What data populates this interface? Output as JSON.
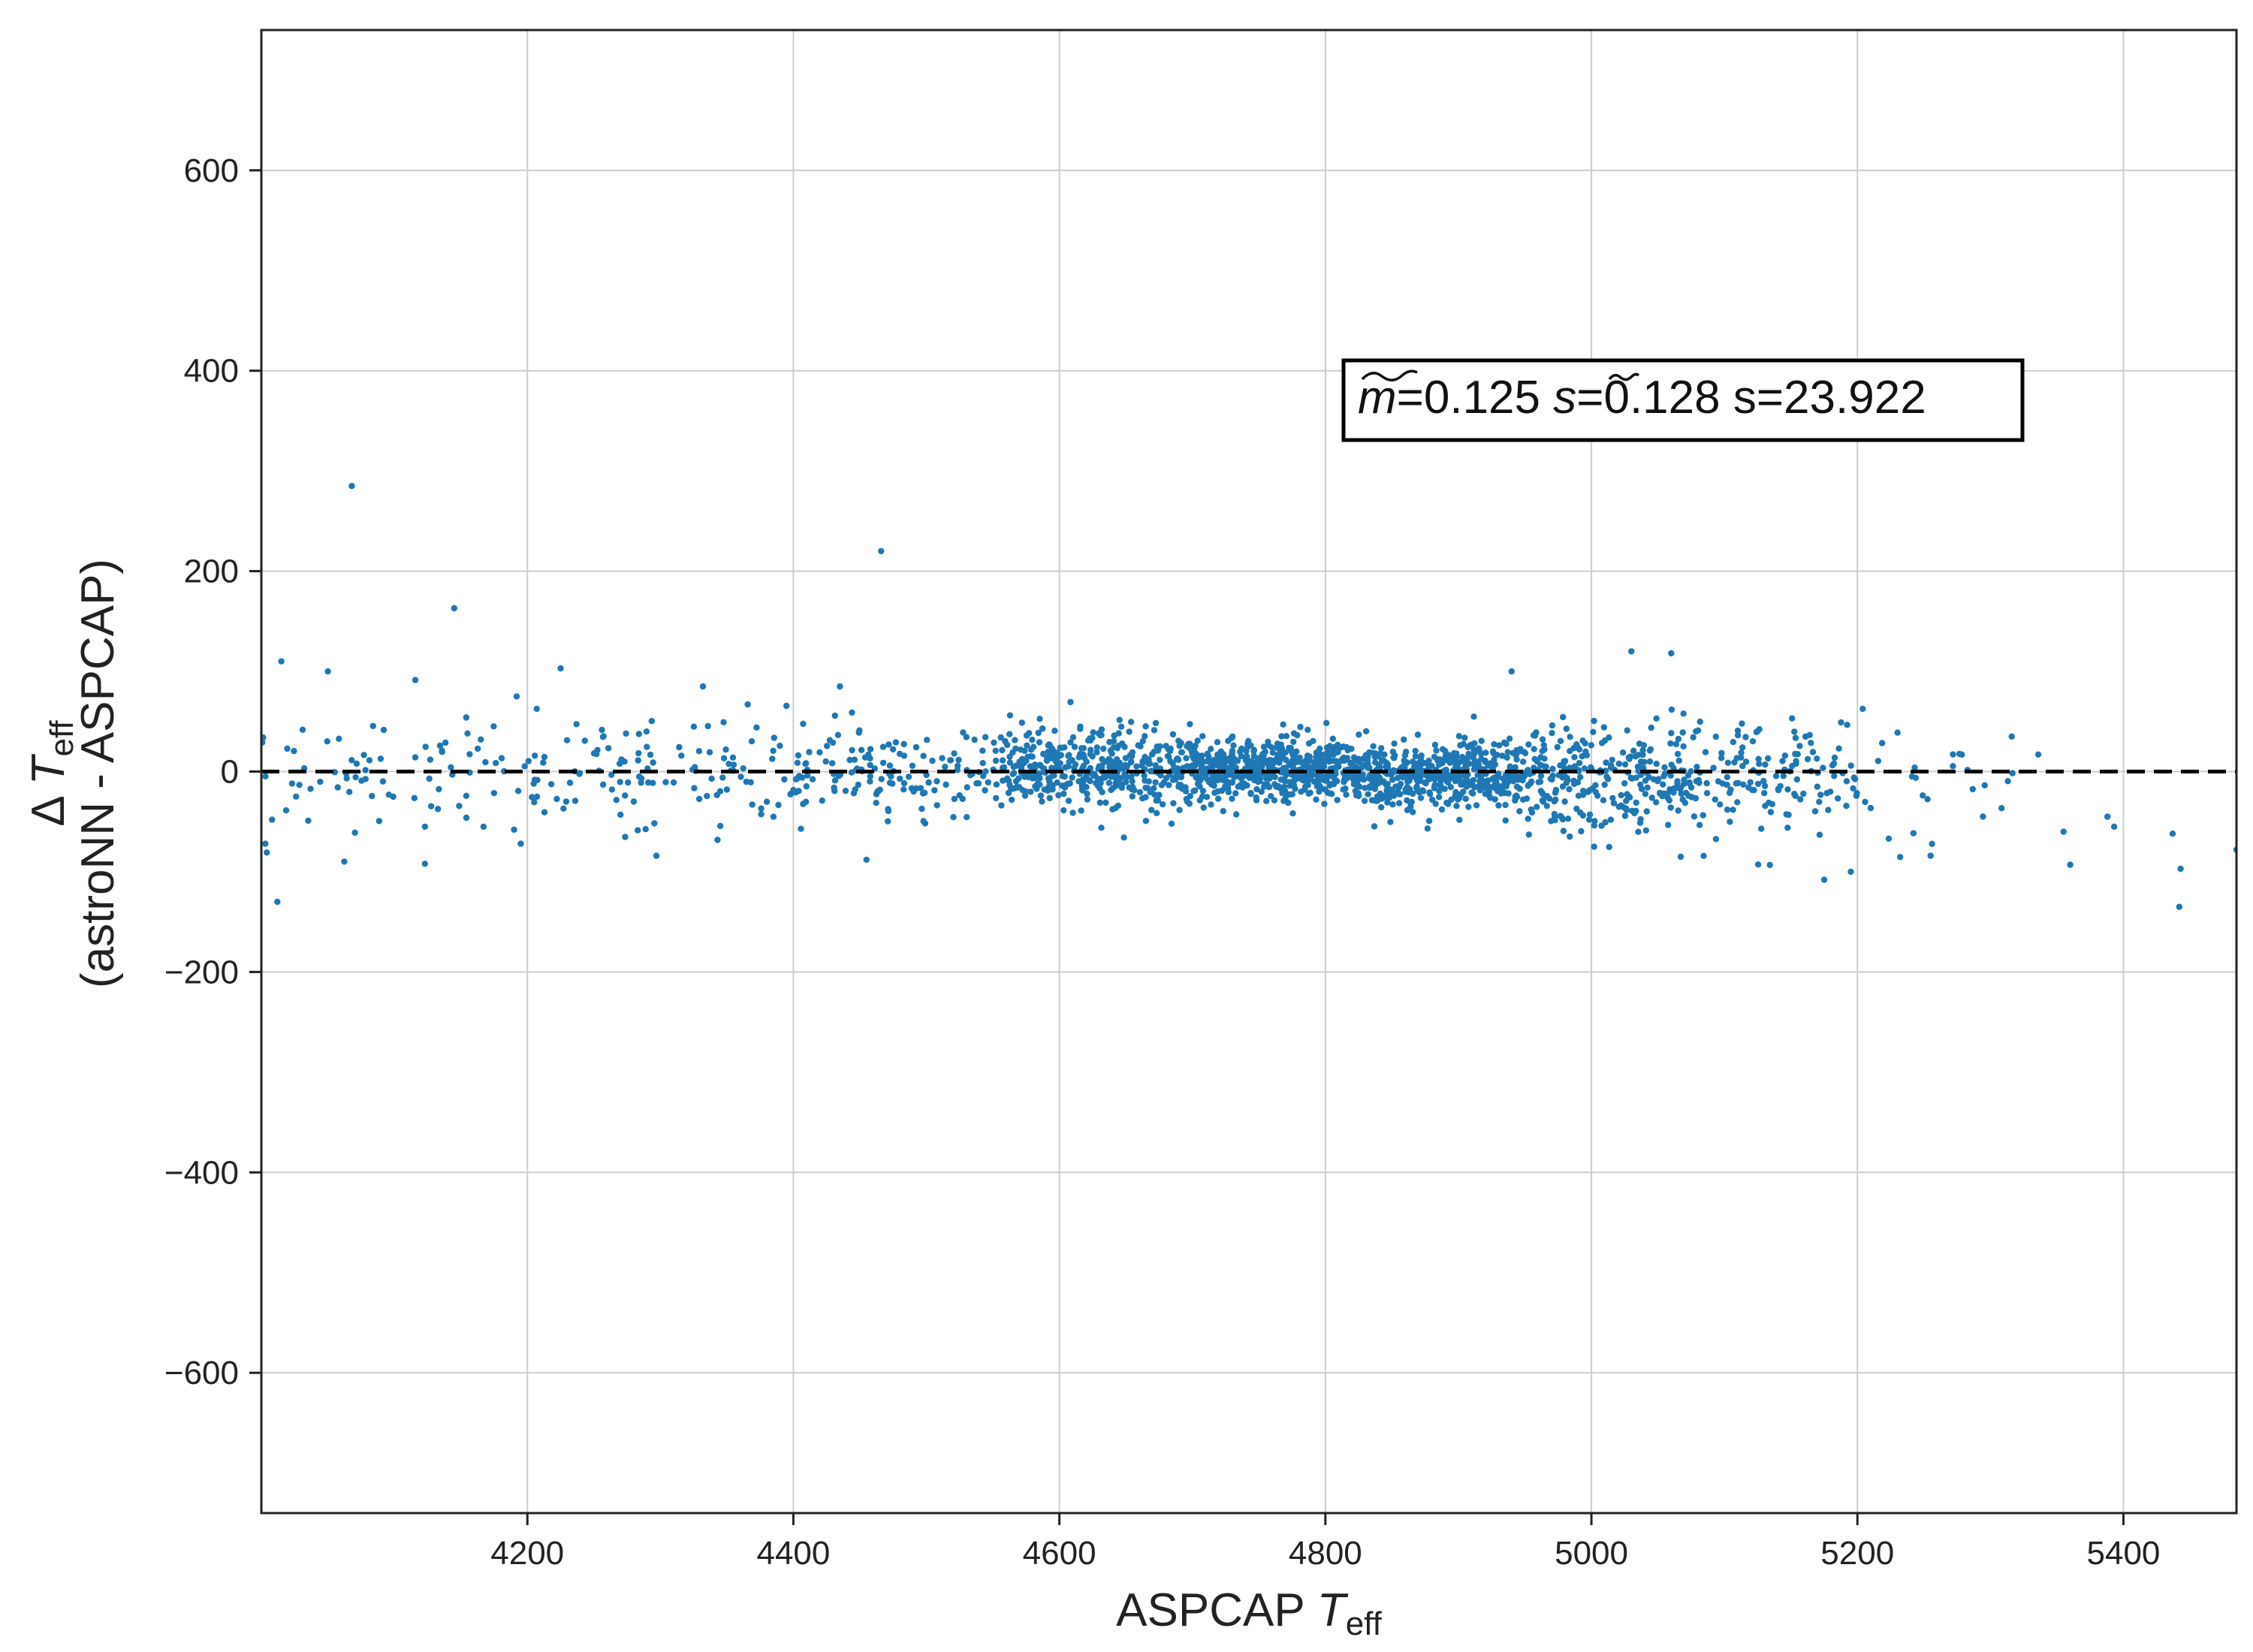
{
  "chart_data": {
    "type": "scatter",
    "xlabel": {
      "main": "ASPCAP ",
      "var": "T",
      "sub": "eff"
    },
    "ylabel": {
      "line1_main": "Δ ",
      "line1_var": "T",
      "line1_sub": "eff",
      "line2": "(astroNN - ASPCAP)"
    },
    "xlim": [
      4000,
      5485
    ],
    "ylim": [
      -740,
      740
    ],
    "x_ticks": [
      4200,
      4400,
      4600,
      4800,
      5000,
      5200,
      5400
    ],
    "y_ticks": [
      -600,
      -400,
      -200,
      0,
      200,
      400,
      600
    ],
    "x_tick_labels": [
      "4200",
      "4400",
      "4600",
      "4800",
      "5000",
      "5200",
      "5400"
    ],
    "y_tick_labels": [
      "−600",
      "−400",
      "−200",
      "0",
      "200",
      "400",
      "600"
    ],
    "grid": true,
    "reference_line": {
      "y": 0,
      "style": "dashed",
      "color": "#000000"
    },
    "annotation": {
      "m_symbol": "m",
      "m_value": "=0.125 ",
      "s_symbol": "s",
      "s_value": "=0.128 s=23.922"
    },
    "colors": {
      "points": "#1f77b4",
      "grid": "#cccccc",
      "frame": "#222222"
    },
    "outliers": [
      {
        "x": 4068,
        "y": 285
      },
      {
        "x": 4466,
        "y": 220
      },
      {
        "x": 4145,
        "y": 163
      },
      {
        "x": 4015,
        "y": 110
      },
      {
        "x": 4050,
        "y": 100
      },
      {
        "x": 4225,
        "y": 103
      },
      {
        "x": 5030,
        "y": 120
      },
      {
        "x": 5060,
        "y": 118
      },
      {
        "x": 4940,
        "y": 100
      },
      {
        "x": 4192,
        "y": 75
      },
      {
        "x": 4332,
        "y": 85
      },
      {
        "x": 4435,
        "y": 85
      },
      {
        "x": 4012,
        "y": -130
      },
      {
        "x": 4123,
        "y": -92
      },
      {
        "x": 4297,
        "y": -84
      },
      {
        "x": 4455,
        "y": -88
      },
      {
        "x": 5442,
        "y": -135
      },
      {
        "x": 5443,
        "y": -97
      },
      {
        "x": 5437,
        "y": -62
      },
      {
        "x": 5360,
        "y": -93
      },
      {
        "x": 5485,
        "y": -78
      },
      {
        "x": 5002,
        "y": -75
      },
      {
        "x": 5175,
        "y": -108
      },
      {
        "x": 5195,
        "y": -100
      },
      {
        "x": 5255,
        "y": -84
      },
      {
        "x": 5316,
        "y": 35
      },
      {
        "x": 5336,
        "y": 17
      },
      {
        "x": 5393,
        "y": -55
      },
      {
        "x": 5388,
        "y": -45
      },
      {
        "x": 5355,
        "y": -60
      },
      {
        "x": 4003,
        "y": -72
      },
      {
        "x": 4008,
        "y": -48
      },
      {
        "x": 4195,
        "y": -72
      },
      {
        "x": 4190,
        "y": -58
      },
      {
        "x": 4167,
        "y": -55
      },
      {
        "x": 4123,
        "y": -55
      },
      {
        "x": 4165,
        "y": 32
      },
      {
        "x": 4155,
        "y": 38
      },
      {
        "x": 4280,
        "y": -30
      },
      {
        "x": 4270,
        "y": -43
      },
      {
        "x": 4350,
        "y": -18
      },
      {
        "x": 4385,
        "y": -45
      }
    ],
    "clusters": [
      {
        "x0": 4000,
        "x1": 4200,
        "sy": 30,
        "mean": 2,
        "n": 70
      },
      {
        "x0": 4200,
        "x1": 4400,
        "sy": 28,
        "mean": 0,
        "n": 110
      },
      {
        "x0": 4400,
        "x1": 4560,
        "sy": 24,
        "mean": 0,
        "n": 150
      },
      {
        "x0": 4560,
        "x1": 4700,
        "sy": 19,
        "mean": 3,
        "n": 420
      },
      {
        "x0": 4700,
        "x1": 4830,
        "sy": 15,
        "mean": 2,
        "n": 560
      },
      {
        "x0": 4830,
        "x1": 4950,
        "sy": 19,
        "mean": -4,
        "n": 460
      },
      {
        "x0": 4950,
        "x1": 5080,
        "sy": 26,
        "mean": -8,
        "n": 280
      },
      {
        "x0": 5080,
        "x1": 5200,
        "sy": 32,
        "mean": -8,
        "n": 130
      },
      {
        "x0": 5200,
        "x1": 5320,
        "sy": 32,
        "mean": -15,
        "n": 26
      }
    ]
  }
}
